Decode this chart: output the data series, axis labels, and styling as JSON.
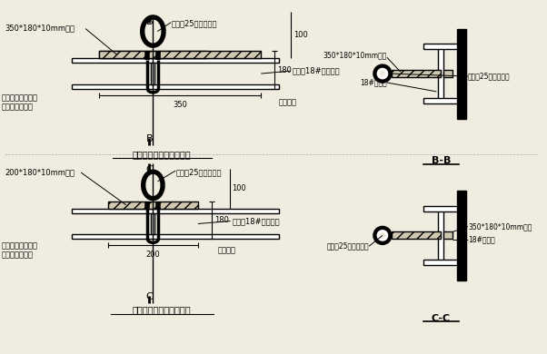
{
  "bg_color": "#f0ede0",
  "line_color": "#000000",
  "hatch_color": "#000000",
  "fill_color": "#d0c8b0",
  "title1": "拉结点与主梁连接节点图",
  "title2": "起吊点与主梁连接节点图",
  "label_BB": "B-B",
  "label_CC": "C-C",
  "texts": {
    "top_left_label": "350*180*10mm铁板",
    "top_hook_label": "吊环（25圆钢制作）",
    "top_beam_label": "主梁（18#工字钢）",
    "top_weld_label": "双面焊接",
    "top_bend_label": "圆钢弯折至工字钢\n底部并双面焊接",
    "top_dim_350": "350",
    "top_dim_100": "100",
    "top_dim_180": "180",
    "bot_left_label": "200*180*10mm铁板",
    "bot_hook_label": "吊环（25圆钢制作）",
    "bot_beam_label": "主梁（18#工字钢）",
    "bot_weld_label": "双面焊接",
    "bot_bend_label": "圆钢弯折至工字钢\n底部并双面焊接",
    "bot_dim_200": "200",
    "bot_dim_100": "100",
    "bot_dim_180": "180",
    "bb_plate": "350*180*10mm铁板",
    "bb_beam": "18#工字钢",
    "bb_hook": "吊环（25圆钢制作）",
    "cc_plate": "350*180*10mm铁板",
    "cc_beam": "18#工字钢",
    "cc_hook": "吊环（25圆钢制作）"
  }
}
